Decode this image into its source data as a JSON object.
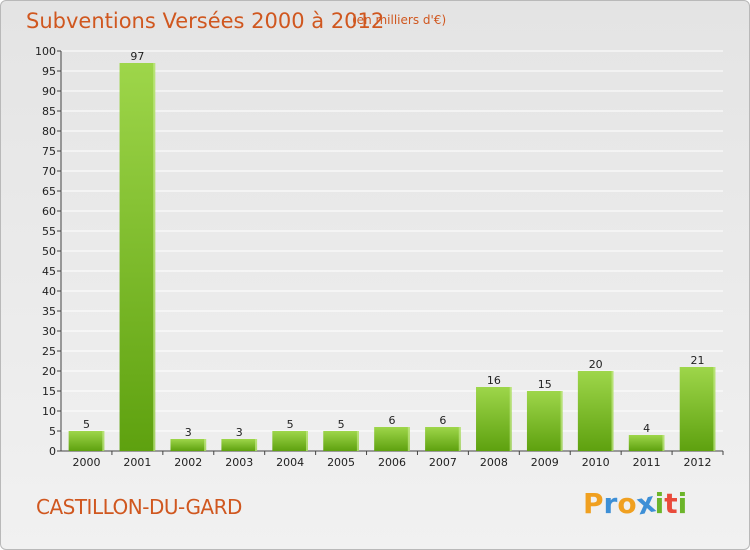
{
  "header": {
    "title": "Subventions Versées 2000 à 2012",
    "unit_note": "(en milliers d'€)"
  },
  "footer": {
    "commune": "CASTILLON-DU-GARD",
    "logo_letters": [
      "P",
      "r",
      "o",
      "x",
      "i",
      "t",
      "i"
    ],
    "logo_colors": [
      "#f0a020",
      "#3d8fd6",
      "#f0a020",
      "#3d8fd6",
      "#6cb52a",
      "#e94b3c",
      "#6cb52a"
    ]
  },
  "colors": {
    "accent_text": "#d0571f",
    "bar_light": "#9ed64a",
    "bar_dark": "#5ea10f",
    "grid": "#ffffff"
  },
  "chart_data": {
    "type": "bar",
    "categories": [
      "2000",
      "2001",
      "2002",
      "2003",
      "2004",
      "2005",
      "2006",
      "2007",
      "2008",
      "2009",
      "2010",
      "2011",
      "2012"
    ],
    "values": [
      5,
      97,
      3,
      3,
      5,
      5,
      6,
      6,
      16,
      15,
      20,
      4,
      21
    ],
    "ylim": [
      0,
      100
    ],
    "y_ticks": [
      0,
      5,
      10,
      15,
      20,
      25,
      30,
      35,
      40,
      45,
      50,
      55,
      60,
      65,
      70,
      75,
      80,
      85,
      90,
      95,
      100
    ],
    "grid": true,
    "data_labels": true
  }
}
